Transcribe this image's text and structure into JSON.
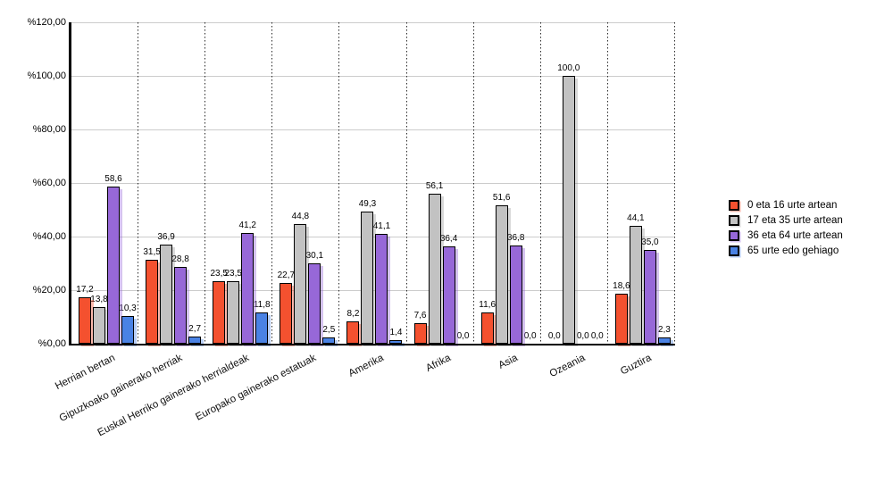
{
  "chart_data": {
    "type": "bar",
    "title": "",
    "categories": [
      "Herrian bertan",
      "Gipuzkoako gainerako herriak",
      "Euskal Herriko gainerako herrialdeak",
      "Europako gainerako estatuak",
      "Amerika",
      "Afrika",
      "Asia",
      "Ozeania",
      "Guztira"
    ],
    "series": [
      {
        "name": "0 eta 16 urte artean",
        "color": "#f4512f",
        "shadow": "rgba(244,81,47,0.4)",
        "values": [
          17.2,
          31.5,
          23.5,
          22.7,
          8.2,
          7.6,
          11.6,
          0.0,
          18.6
        ]
      },
      {
        "name": "17 eta 35 urte artean",
        "color": "#c2c2c2",
        "shadow": "rgba(130,130,130,0.3)",
        "values": [
          13.8,
          36.9,
          23.5,
          44.8,
          49.3,
          56.1,
          51.6,
          100.0,
          44.1
        ]
      },
      {
        "name": "36 eta 64 urte artean",
        "color": "#9768d8",
        "shadow": "rgba(151,104,216,0.4)",
        "values": [
          58.6,
          28.8,
          41.2,
          30.1,
          41.1,
          36.4,
          36.8,
          0.0,
          35.0
        ]
      },
      {
        "name": "65 urte edo gehiago",
        "color": "#4a82e4",
        "shadow": "rgba(74,130,228,0.4)",
        "values": [
          10.3,
          2.7,
          11.8,
          2.5,
          1.4,
          0.0,
          0.0,
          0.0,
          2.3
        ]
      }
    ],
    "y_ticks": [
      "%120,00",
      "%100,00",
      "%80,00",
      "%60,00",
      "%40,00",
      "%20,00",
      "%0,00"
    ],
    "ylim": [
      0,
      120
    ],
    "grid": true,
    "gridline_color": "#cccccc",
    "separator_style": "dotted",
    "legend_position": "right",
    "decimal_separator": ",",
    "value_labels": true
  }
}
